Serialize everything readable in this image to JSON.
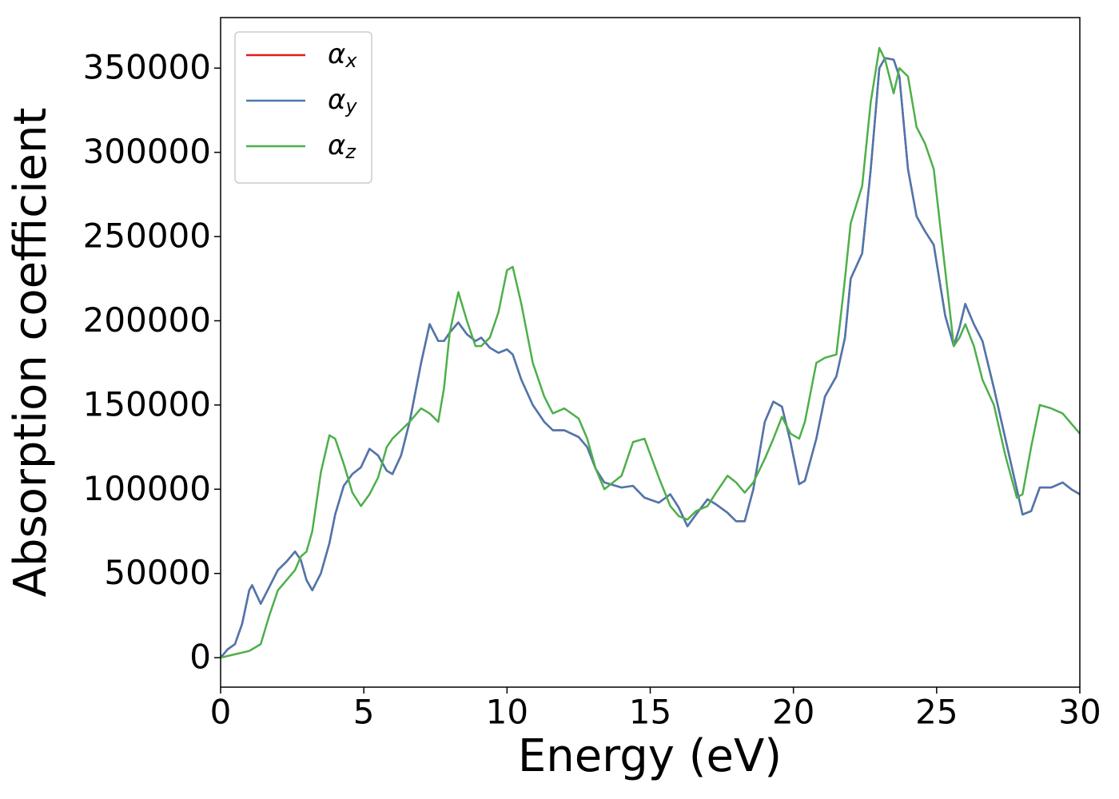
{
  "chart_data": {
    "type": "line",
    "xlabel": "Energy (eV)",
    "ylabel": "Absorption coefficient",
    "x": [
      0,
      0.25,
      0.5,
      0.75,
      1.0,
      1.1,
      1.4,
      1.7,
      2.0,
      2.3,
      2.6,
      2.8,
      3.0,
      3.2,
      3.5,
      3.8,
      4.0,
      4.3,
      4.6,
      4.9,
      5.2,
      5.5,
      5.8,
      6.0,
      6.3,
      6.6,
      7.0,
      7.3,
      7.6,
      7.8,
      8.0,
      8.3,
      8.6,
      8.9,
      9.1,
      9.4,
      9.7,
      10.0,
      10.2,
      10.5,
      10.9,
      11.3,
      11.6,
      12.0,
      12.5,
      12.8,
      13.1,
      13.4,
      14.0,
      14.4,
      14.8,
      15.3,
      15.7,
      16.0,
      16.3,
      16.6,
      17.0,
      17.3,
      17.7,
      18.0,
      18.3,
      18.6,
      19.0,
      19.3,
      19.6,
      19.9,
      20.2,
      20.4,
      20.8,
      21.1,
      21.5,
      21.8,
      22.0,
      22.4,
      22.7,
      23.0,
      23.2,
      23.5,
      23.7,
      24.0,
      24.3,
      24.6,
      24.9,
      25.3,
      25.6,
      25.8,
      26.0,
      26.3,
      26.6,
      27.0,
      27.4,
      27.8,
      28.0,
      28.3,
      28.6,
      29.0,
      29.4,
      29.7,
      30.0
    ],
    "series": [
      {
        "name": "αx",
        "color": "#e41a1c",
        "values": [
          0,
          5000,
          8000,
          20000,
          40000,
          43000,
          32000,
          42000,
          52000,
          57000,
          63000,
          58000,
          46000,
          40000,
          50000,
          68000,
          85000,
          102000,
          109000,
          113000,
          124000,
          120000,
          111000,
          109000,
          120000,
          140000,
          175000,
          198000,
          188000,
          188000,
          193000,
          199000,
          192000,
          188000,
          190000,
          184000,
          181000,
          183000,
          180000,
          165000,
          150000,
          140000,
          135000,
          135000,
          131000,
          125000,
          112000,
          104000,
          101000,
          102000,
          95000,
          92000,
          97000,
          89000,
          78000,
          85000,
          94000,
          91000,
          86000,
          81000,
          81000,
          100000,
          140000,
          152000,
          149000,
          128000,
          103000,
          105000,
          130000,
          155000,
          167000,
          190000,
          225000,
          240000,
          290000,
          350000,
          356000,
          355000,
          345000,
          290000,
          262000,
          253000,
          245000,
          203000,
          185000,
          196000,
          210000,
          198000,
          188000,
          160000,
          130000,
          100000,
          85000,
          87000,
          101000,
          101000,
          104000,
          100000,
          97000
        ]
      },
      {
        "name": "αy",
        "color": "#4a78b0",
        "values": [
          0,
          5000,
          8000,
          20000,
          40000,
          43000,
          32000,
          42000,
          52000,
          57000,
          63000,
          58000,
          46000,
          40000,
          50000,
          68000,
          85000,
          102000,
          109000,
          113000,
          124000,
          120000,
          111000,
          109000,
          120000,
          140000,
          175000,
          198000,
          188000,
          188000,
          193000,
          199000,
          192000,
          188000,
          190000,
          184000,
          181000,
          183000,
          180000,
          165000,
          150000,
          140000,
          135000,
          135000,
          131000,
          125000,
          112000,
          104000,
          101000,
          102000,
          95000,
          92000,
          97000,
          89000,
          78000,
          85000,
          94000,
          91000,
          86000,
          81000,
          81000,
          100000,
          140000,
          152000,
          149000,
          128000,
          103000,
          105000,
          130000,
          155000,
          167000,
          190000,
          225000,
          240000,
          290000,
          350000,
          356000,
          355000,
          345000,
          290000,
          262000,
          253000,
          245000,
          203000,
          185000,
          196000,
          210000,
          198000,
          188000,
          160000,
          130000,
          100000,
          85000,
          87000,
          101000,
          101000,
          104000,
          100000,
          97000
        ]
      },
      {
        "name": "αz",
        "color": "#4daf4a",
        "values": [
          0,
          1000,
          2000,
          3000,
          4000,
          5000,
          8000,
          25000,
          40000,
          46000,
          52000,
          60000,
          63000,
          75000,
          110000,
          132000,
          130000,
          115000,
          98000,
          90000,
          97000,
          107000,
          125000,
          130000,
          135000,
          140000,
          148000,
          145000,
          140000,
          160000,
          193000,
          217000,
          200000,
          185000,
          185000,
          190000,
          205000,
          230000,
          232000,
          210000,
          175000,
          155000,
          145000,
          148000,
          142000,
          130000,
          112000,
          100000,
          108000,
          128000,
          130000,
          107000,
          90000,
          84000,
          82000,
          87000,
          90000,
          98000,
          108000,
          104000,
          98000,
          104000,
          118000,
          130000,
          143000,
          133000,
          130000,
          140000,
          175000,
          178000,
          180000,
          225000,
          258000,
          280000,
          330000,
          362000,
          355000,
          335000,
          350000,
          345000,
          315000,
          305000,
          290000,
          230000,
          185000,
          190000,
          198000,
          185000,
          165000,
          150000,
          120000,
          95000,
          97000,
          125000,
          150000,
          148000,
          145000,
          139000,
          133000
        ]
      }
    ],
    "xlim": [
      0,
      30
    ],
    "ylim": [
      -17500,
      380000
    ],
    "xticks": [
      0,
      5,
      10,
      15,
      20,
      25,
      30
    ],
    "yticks": [
      0,
      50000,
      100000,
      150000,
      200000,
      250000,
      300000,
      350000
    ],
    "legend": "upper left",
    "grid": false
  }
}
